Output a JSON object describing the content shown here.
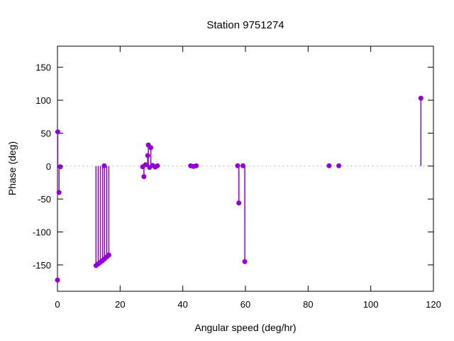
{
  "window": {
    "background": "#ffffff"
  },
  "chart_data": {
    "type": "scatter",
    "subtype": "impulse-stems-with-points",
    "title": "Station 9751274",
    "xlabel": "Angular speed (deg/hr)",
    "ylabel": "Phase (deg)",
    "xlim": [
      0,
      120
    ],
    "ylim": [
      -190,
      182
    ],
    "x_ticks": [
      0,
      20,
      40,
      60,
      80,
      100,
      120
    ],
    "y_ticks": [
      -150,
      -100,
      -50,
      0,
      50,
      100,
      150
    ],
    "grid": false,
    "legend": "none",
    "zero_line": {
      "y": 0,
      "style": "dotted",
      "color": "#909090"
    },
    "series_color": "#9400d3",
    "axis_color": "#000000",
    "points": [
      {
        "x": 0.1,
        "y": 52,
        "stem": true
      },
      {
        "x": 0.5,
        "y": -40,
        "stem": true
      },
      {
        "x": 0.9,
        "y": -1,
        "stem": true
      },
      {
        "x": 0.0,
        "y": -173,
        "stem": false
      },
      {
        "x": 12.3,
        "y": -151,
        "stem": true
      },
      {
        "x": 13.0,
        "y": -148.5,
        "stem": true
      },
      {
        "x": 13.7,
        "y": -146,
        "stem": true
      },
      {
        "x": 14.4,
        "y": -143.5,
        "stem": true
      },
      {
        "x": 15.0,
        "y": -141,
        "stem": true
      },
      {
        "x": 15.7,
        "y": -138,
        "stem": true
      },
      {
        "x": 16.4,
        "y": -135,
        "stem": true
      },
      {
        "x": 14.9,
        "y": 0.5,
        "stem": true
      },
      {
        "x": 27.6,
        "y": -16,
        "stem": true
      },
      {
        "x": 27.2,
        "y": -1,
        "stem": true
      },
      {
        "x": 28.1,
        "y": 2,
        "stem": true
      },
      {
        "x": 28.8,
        "y": 16,
        "stem": true
      },
      {
        "x": 29.0,
        "y": 32,
        "stem": true
      },
      {
        "x": 29.4,
        "y": -2,
        "stem": true
      },
      {
        "x": 29.8,
        "y": 28,
        "stem": true
      },
      {
        "x": 30.4,
        "y": 1,
        "stem": true
      },
      {
        "x": 31.2,
        "y": -1.5,
        "stem": true
      },
      {
        "x": 31.9,
        "y": 0.5,
        "stem": true
      },
      {
        "x": 42.5,
        "y": 0.5,
        "stem": true
      },
      {
        "x": 43.4,
        "y": -0.5,
        "stem": true
      },
      {
        "x": 44.3,
        "y": 0.5,
        "stem": true
      },
      {
        "x": 57.5,
        "y": 0.5,
        "stem": true
      },
      {
        "x": 57.9,
        "y": -56,
        "stem": true
      },
      {
        "x": 59.2,
        "y": 0.5,
        "stem": true
      },
      {
        "x": 59.8,
        "y": -145,
        "stem": true
      },
      {
        "x": 86.7,
        "y": 0.5,
        "stem": true
      },
      {
        "x": 89.8,
        "y": 0.5,
        "stem": true
      },
      {
        "x": 116.0,
        "y": 103,
        "stem": true
      }
    ]
  }
}
